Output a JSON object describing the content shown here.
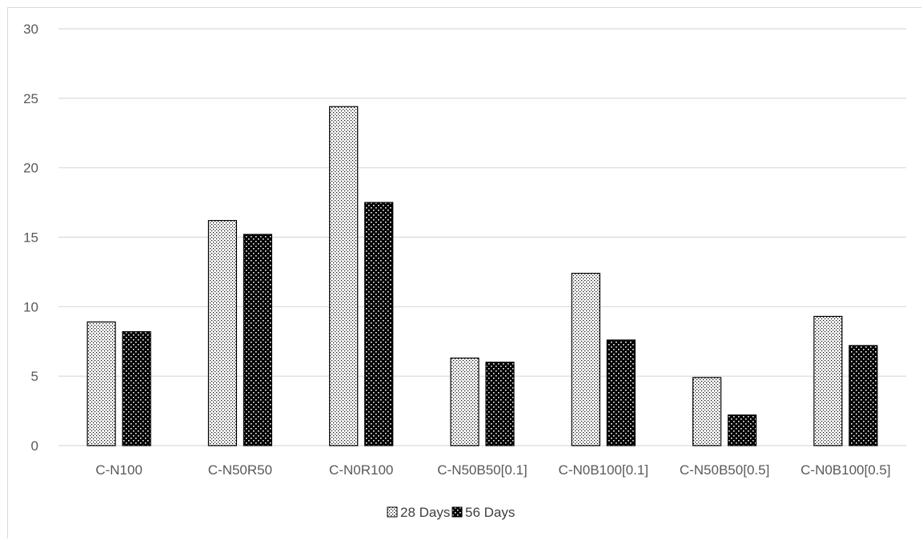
{
  "chart_data": {
    "type": "bar",
    "categories": [
      "C-N100",
      "C-N50R50",
      "C-N0R100",
      "C-N50B50[0.1]",
      "C-N0B100[0.1]",
      "C-N50B50[0.5]",
      "C-N0B100[0.5]"
    ],
    "series": [
      {
        "name": "28 Days",
        "values": [
          8.9,
          16.2,
          24.4,
          6.3,
          12.4,
          4.9,
          9.3
        ],
        "pattern": "fine-dots-light"
      },
      {
        "name": "56 Days",
        "values": [
          8.2,
          15.2,
          17.5,
          6.0,
          7.6,
          2.2,
          7.2
        ],
        "pattern": "dots-dark"
      }
    ],
    "ylim": [
      0,
      30
    ],
    "yticks": [
      0,
      5,
      10,
      15,
      20,
      25,
      30
    ],
    "grid": true,
    "legend_position": "bottom",
    "title": "",
    "xlabel": "",
    "ylabel": "",
    "colors": {
      "gridline": "#d9d9d9",
      "bar_outline": "#000000",
      "tick_text": "#595959"
    }
  }
}
